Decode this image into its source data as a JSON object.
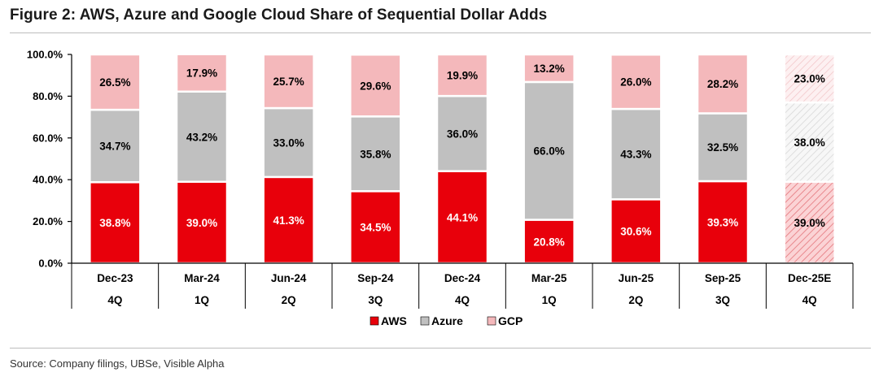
{
  "figure_title": "Figure 2: AWS, Azure and Google Cloud Share of Sequential Dollar Adds",
  "source": "Source: Company filings, UBSe, Visible Alpha",
  "colors": {
    "AWS": "#e8000b",
    "Azure": "#c0c0c0",
    "GCP": "#f4b8bb",
    "bar_border": "#ffffff"
  },
  "chart_data": {
    "type": "bar",
    "stacked": true,
    "title": "Figure 2: AWS, Azure and Google Cloud Share of Sequential Dollar Adds",
    "xlabel": "",
    "ylabel": "",
    "ylim": [
      0,
      100
    ],
    "yticks": [
      "0.0%",
      "20.0%",
      "40.0%",
      "60.0%",
      "80.0%",
      "100.0%"
    ],
    "categories": [
      "Dec-23",
      "Mar-24",
      "Jun-24",
      "Sep-24",
      "Dec-24",
      "Mar-25",
      "Jun-25",
      "Sep-25",
      "Dec-25E"
    ],
    "quarters": [
      "4Q",
      "1Q",
      "2Q",
      "3Q",
      "4Q",
      "1Q",
      "2Q",
      "3Q",
      "4Q"
    ],
    "estimate_category": "Dec-25E",
    "series": [
      {
        "name": "AWS",
        "values": [
          38.8,
          39.0,
          41.3,
          34.5,
          44.1,
          20.8,
          30.6,
          39.3,
          39.0
        ],
        "labels": [
          "38.8%",
          "39.0%",
          "41.3%",
          "34.5%",
          "44.1%",
          "20.8%",
          "30.6%",
          "39.3%",
          "39.0%"
        ]
      },
      {
        "name": "Azure",
        "values": [
          34.7,
          43.2,
          33.0,
          35.8,
          36.0,
          66.0,
          43.3,
          32.5,
          38.0
        ],
        "labels": [
          "34.7%",
          "43.2%",
          "33.0%",
          "35.8%",
          "36.0%",
          "66.0%",
          "43.3%",
          "32.5%",
          "38.0%"
        ]
      },
      {
        "name": "GCP",
        "values": [
          26.5,
          17.9,
          25.7,
          29.6,
          19.9,
          13.2,
          26.0,
          28.2,
          23.0
        ],
        "labels": [
          "26.5%",
          "17.9%",
          "25.7%",
          "29.6%",
          "19.9%",
          "13.2%",
          "26.0%",
          "28.2%",
          "23.0%"
        ]
      }
    ],
    "legend": [
      "AWS",
      "Azure",
      "GCP"
    ],
    "legend_position": "bottom-center",
    "grid": false
  }
}
